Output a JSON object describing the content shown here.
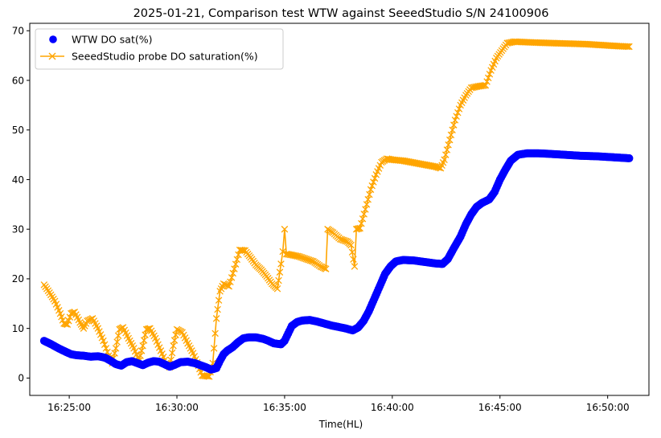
{
  "chart_data": {
    "type": "scatter",
    "title": "2025-01-21, Comparison test WTW against SeeedStudio S/N 24100906",
    "xlabel": "Time(HL)",
    "ylabel": "",
    "xlim": [
      "16:23:10",
      "16:51:55"
    ],
    "ylim": [
      -3.5,
      71.5
    ],
    "x_ticks": [
      "16:25:00",
      "16:30:00",
      "16:35:00",
      "16:40:00",
      "16:45:00",
      "16:50:00"
    ],
    "y_ticks": [
      0,
      10,
      20,
      30,
      40,
      50,
      60,
      70
    ],
    "grid": false,
    "legend_position": "top-left",
    "colors": {
      "wtw": "#0000ff",
      "seeed": "#ffa500"
    },
    "series": [
      {
        "name": "WTW DO sat(%)",
        "marker": "circle",
        "line": false,
        "points": [
          [
            "16:23:50",
            7.5
          ],
          [
            "16:24:10",
            6.8
          ],
          [
            "16:24:30",
            6.0
          ],
          [
            "16:24:50",
            5.3
          ],
          [
            "16:25:05",
            4.8
          ],
          [
            "16:25:20",
            4.6
          ],
          [
            "16:25:40",
            4.5
          ],
          [
            "16:26:00",
            4.3
          ],
          [
            "16:26:20",
            4.4
          ],
          [
            "16:26:40",
            4.1
          ],
          [
            "16:26:55",
            3.5
          ],
          [
            "16:27:10",
            2.8
          ],
          [
            "16:27:25",
            2.5
          ],
          [
            "16:27:40",
            3.2
          ],
          [
            "16:27:55",
            3.4
          ],
          [
            "16:28:10",
            3.0
          ],
          [
            "16:28:25",
            2.6
          ],
          [
            "16:28:40",
            3.1
          ],
          [
            "16:28:55",
            3.4
          ],
          [
            "16:29:10",
            3.3
          ],
          [
            "16:29:25",
            2.8
          ],
          [
            "16:29:40",
            2.3
          ],
          [
            "16:29:55",
            2.7
          ],
          [
            "16:30:10",
            3.2
          ],
          [
            "16:30:30",
            3.3
          ],
          [
            "16:30:50",
            3.0
          ],
          [
            "16:31:05",
            2.6
          ],
          [
            "16:31:20",
            2.2
          ],
          [
            "16:31:35",
            1.7
          ],
          [
            "16:31:50",
            2.0
          ],
          [
            "16:32:00",
            3.5
          ],
          [
            "16:32:10",
            4.8
          ],
          [
            "16:32:20",
            5.5
          ],
          [
            "16:32:35",
            6.2
          ],
          [
            "16:32:50",
            7.2
          ],
          [
            "16:33:05",
            8.0
          ],
          [
            "16:33:20",
            8.2
          ],
          [
            "16:33:40",
            8.2
          ],
          [
            "16:34:00",
            7.9
          ],
          [
            "16:34:15",
            7.5
          ],
          [
            "16:34:30",
            7.0
          ],
          [
            "16:34:50",
            6.8
          ],
          [
            "16:35:00",
            7.5
          ],
          [
            "16:35:10",
            9.0
          ],
          [
            "16:35:20",
            10.5
          ],
          [
            "16:35:35",
            11.3
          ],
          [
            "16:35:50",
            11.6
          ],
          [
            "16:36:10",
            11.7
          ],
          [
            "16:36:30",
            11.4
          ],
          [
            "16:36:50",
            11.0
          ],
          [
            "16:37:10",
            10.6
          ],
          [
            "16:37:30",
            10.3
          ],
          [
            "16:37:50",
            10.0
          ],
          [
            "16:38:10",
            9.6
          ],
          [
            "16:38:25",
            10.2
          ],
          [
            "16:38:40",
            11.5
          ],
          [
            "16:38:55",
            13.5
          ],
          [
            "16:39:10",
            16.0
          ],
          [
            "16:39:25",
            18.5
          ],
          [
            "16:39:40",
            21.0
          ],
          [
            "16:39:55",
            22.5
          ],
          [
            "16:40:10",
            23.5
          ],
          [
            "16:40:30",
            23.8
          ],
          [
            "16:41:00",
            23.7
          ],
          [
            "16:41:30",
            23.4
          ],
          [
            "16:42:00",
            23.1
          ],
          [
            "16:42:20",
            23.0
          ],
          [
            "16:42:35",
            24.0
          ],
          [
            "16:42:50",
            26.0
          ],
          [
            "16:43:10",
            28.5
          ],
          [
            "16:43:25",
            31.0
          ],
          [
            "16:43:40",
            33.0
          ],
          [
            "16:43:55",
            34.5
          ],
          [
            "16:44:10",
            35.3
          ],
          [
            "16:44:30",
            36.0
          ],
          [
            "16:44:45",
            37.5
          ],
          [
            "16:45:00",
            40.0
          ],
          [
            "16:45:15",
            42.0
          ],
          [
            "16:45:30",
            43.8
          ],
          [
            "16:45:50",
            45.0
          ],
          [
            "16:46:15",
            45.3
          ],
          [
            "16:46:45",
            45.3
          ],
          [
            "16:47:15",
            45.2
          ],
          [
            "16:48:00",
            45.0
          ],
          [
            "16:48:45",
            44.8
          ],
          [
            "16:49:30",
            44.7
          ],
          [
            "16:50:15",
            44.5
          ],
          [
            "16:51:00",
            44.3
          ]
        ]
      },
      {
        "name": "SeeedStudio probe DO saturation(%)",
        "marker": "x",
        "line": true,
        "points": [
          [
            "16:23:50",
            18.8
          ],
          [
            "16:24:05",
            17.2
          ],
          [
            "16:24:20",
            15.5
          ],
          [
            "16:24:35",
            13.0
          ],
          [
            "16:24:45",
            11.0
          ],
          [
            "16:24:55",
            10.8
          ],
          [
            "16:25:05",
            13.0
          ],
          [
            "16:25:15",
            13.3
          ],
          [
            "16:25:30",
            11.2
          ],
          [
            "16:25:40",
            10.0
          ],
          [
            "16:25:50",
            11.5
          ],
          [
            "16:26:05",
            12.0
          ],
          [
            "16:26:20",
            10.0
          ],
          [
            "16:26:35",
            7.5
          ],
          [
            "16:26:50",
            4.5
          ],
          [
            "16:27:00",
            3.0
          ],
          [
            "16:27:10",
            6.0
          ],
          [
            "16:27:20",
            9.8
          ],
          [
            "16:27:30",
            10.2
          ],
          [
            "16:27:45",
            8.0
          ],
          [
            "16:28:00",
            6.0
          ],
          [
            "16:28:15",
            3.5
          ],
          [
            "16:28:25",
            6.5
          ],
          [
            "16:28:35",
            9.8
          ],
          [
            "16:28:45",
            10.0
          ],
          [
            "16:29:00",
            8.0
          ],
          [
            "16:29:15",
            5.5
          ],
          [
            "16:29:30",
            3.0
          ],
          [
            "16:29:40",
            2.2
          ],
          [
            "16:29:50",
            6.5
          ],
          [
            "16:30:00",
            9.8
          ],
          [
            "16:30:15",
            9.2
          ],
          [
            "16:30:30",
            7.0
          ],
          [
            "16:30:45",
            5.0
          ],
          [
            "16:31:00",
            2.5
          ],
          [
            "16:31:10",
            0.5
          ],
          [
            "16:31:30",
            0.3
          ],
          [
            "16:31:40",
            3.0
          ],
          [
            "16:31:50",
            12.0
          ],
          [
            "16:32:00",
            17.5
          ],
          [
            "16:32:10",
            19.0
          ],
          [
            "16:32:25",
            18.5
          ],
          [
            "16:32:40",
            22.0
          ],
          [
            "16:32:55",
            25.8
          ],
          [
            "16:33:10",
            25.7
          ],
          [
            "16:33:25",
            24.3
          ],
          [
            "16:33:40",
            22.8
          ],
          [
            "16:33:55",
            21.8
          ],
          [
            "16:34:10",
            20.5
          ],
          [
            "16:34:25",
            19.0
          ],
          [
            "16:34:40",
            18.0
          ],
          [
            "16:34:50",
            23.0
          ],
          [
            "16:34:55",
            25.5
          ],
          [
            "16:35:00",
            30.0
          ],
          [
            "16:35:05",
            25.0
          ],
          [
            "16:35:20",
            24.8
          ],
          [
            "16:35:40",
            24.5
          ],
          [
            "16:36:00",
            24.0
          ],
          [
            "16:36:20",
            23.5
          ],
          [
            "16:36:40",
            22.5
          ],
          [
            "16:36:55",
            22.0
          ],
          [
            "16:37:00",
            30.0
          ],
          [
            "16:37:15",
            29.3
          ],
          [
            "16:37:35",
            28.0
          ],
          [
            "16:37:55",
            27.5
          ],
          [
            "16:38:05",
            26.8
          ],
          [
            "16:38:15",
            22.5
          ],
          [
            "16:38:20",
            30.0
          ],
          [
            "16:38:30",
            30.2
          ],
          [
            "16:38:45",
            34.0
          ],
          [
            "16:39:00",
            38.0
          ],
          [
            "16:39:15",
            41.0
          ],
          [
            "16:39:30",
            43.5
          ],
          [
            "16:39:45",
            44.2
          ],
          [
            "16:40:00",
            44.0
          ],
          [
            "16:40:30",
            43.8
          ],
          [
            "16:41:00",
            43.4
          ],
          [
            "16:41:30",
            43.0
          ],
          [
            "16:42:00",
            42.6
          ],
          [
            "16:42:15",
            42.3
          ],
          [
            "16:42:25",
            44.0
          ],
          [
            "16:42:40",
            48.0
          ],
          [
            "16:42:55",
            52.0
          ],
          [
            "16:43:10",
            55.0
          ],
          [
            "16:43:25",
            57.0
          ],
          [
            "16:43:40",
            58.5
          ],
          [
            "16:44:00",
            58.8
          ],
          [
            "16:44:20",
            59.0
          ],
          [
            "16:44:35",
            62.0
          ],
          [
            "16:44:50",
            64.5
          ],
          [
            "16:45:05",
            66.0
          ],
          [
            "16:45:20",
            67.5
          ],
          [
            "16:45:40",
            67.8
          ],
          [
            "16:46:10",
            67.7
          ],
          [
            "16:46:45",
            67.6
          ],
          [
            "16:47:30",
            67.5
          ],
          [
            "16:48:15",
            67.4
          ],
          [
            "16:49:00",
            67.3
          ],
          [
            "16:49:45",
            67.1
          ],
          [
            "16:50:30",
            66.9
          ],
          [
            "16:51:00",
            66.8
          ]
        ]
      }
    ]
  }
}
